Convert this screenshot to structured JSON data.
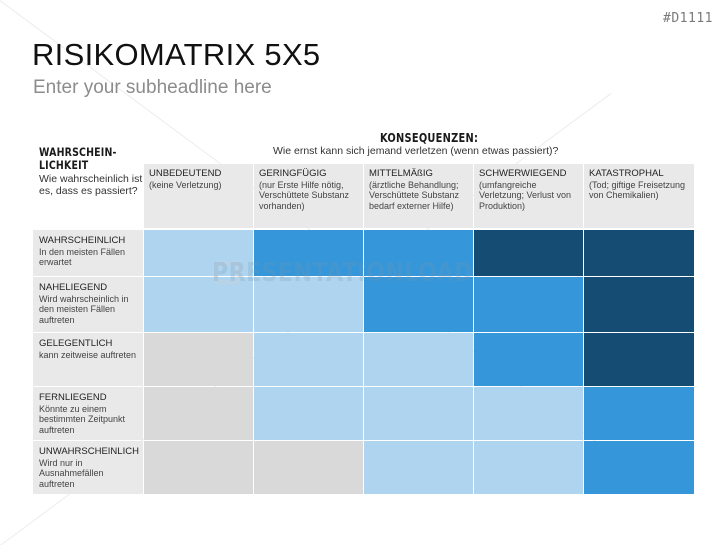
{
  "slide": {
    "id": "#D1111",
    "title": "RISIKOMATRIX 5X5",
    "subtitle": "Enter your subheadline here",
    "watermark": "PRESENTATIONLOAD"
  },
  "axes": {
    "y_title": "WAHRSCHEIN-LICHKEIT",
    "y_title_line1": "WAHRSCHEIN-",
    "y_title_line2": "LICHKEIT",
    "y_question": "Wie wahrscheinlich ist es, dass es passiert?",
    "x_title": "KONSEQUENZEN:",
    "x_question": "Wie ernst kann sich jemand verletzen (wenn etwas passiert)?"
  },
  "columns": [
    {
      "label": "UNBEDEUTEND",
      "desc": "(keine Verletzung)"
    },
    {
      "label": "GERINGFÜGIG",
      "desc": "(nur Erste Hilfe nötig, Verschüttete Substanz vorhanden)"
    },
    {
      "label": "MITTELMÄßIG",
      "desc": "(ärztliche Behandlung; Verschüttete Substanz bedarf externer Hilfe)"
    },
    {
      "label": "SCHWERWIEGEND",
      "desc": "(umfangreiche Verletzung; Verlust von Produktion)"
    },
    {
      "label": "KATASTROPHAL",
      "desc": "(Tod; giftige Freisetzung von Chemikalien)"
    }
  ],
  "rows": [
    {
      "label": "WAHRSCHEINLICH",
      "desc": "In den meisten Fällen erwartet"
    },
    {
      "label": "NAHELIEGEND",
      "desc": "Wird wahrscheinlich in den meisten Fällen auftreten"
    },
    {
      "label": "GELEGENTLICH",
      "desc": "kann zeitweise auftreten"
    },
    {
      "label": "FERNLIEGEND",
      "desc": "Könnte zu einem bestimmten Zeitpunkt auftreten"
    },
    {
      "label": "UNWAHRSCHEINLICH",
      "desc": "Wird nur in Ausnahmefällen auftreten"
    }
  ],
  "colors": {
    "none": "#d9d9d9",
    "low": "#aed4ef",
    "medium": "#3597d9",
    "high": "#144c74",
    "header_bg": "#e9e9e9"
  },
  "chart_data": {
    "type": "heatmap",
    "title": "RISIKOMATRIX 5X5",
    "xlabel": "KONSEQUENZEN",
    "ylabel": "WAHRSCHEINLICHKEIT",
    "x": [
      "UNBEDEUTEND",
      "GERINGFÜGIG",
      "MITTELMÄßIG",
      "SCHWERWIEGEND",
      "KATASTROPHAL"
    ],
    "y": [
      "WAHRSCHEINLICH",
      "NAHELIEGEND",
      "GELEGENTLICH",
      "FERNLIEGEND",
      "UNWAHRSCHEINLICH"
    ],
    "levels": [
      "none",
      "low",
      "medium",
      "high"
    ],
    "matrix": [
      [
        "low",
        "medium",
        "medium",
        "high",
        "high"
      ],
      [
        "low",
        "low",
        "medium",
        "medium",
        "high"
      ],
      [
        "none",
        "low",
        "low",
        "medium",
        "high"
      ],
      [
        "none",
        "low",
        "low",
        "low",
        "medium"
      ],
      [
        "none",
        "none",
        "low",
        "low",
        "medium"
      ]
    ]
  }
}
